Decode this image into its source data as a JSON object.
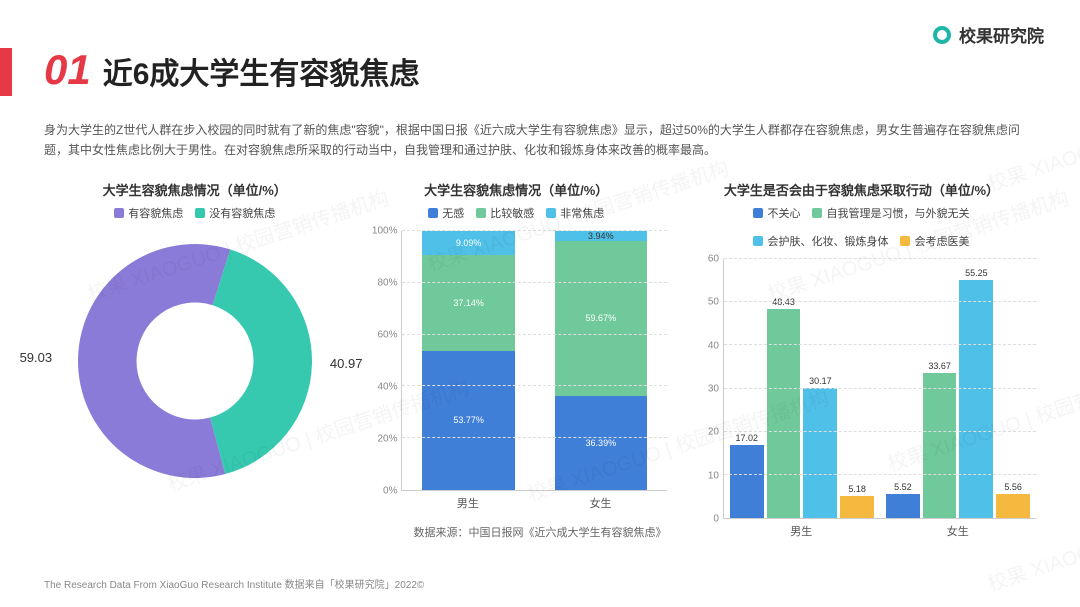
{
  "brand": {
    "name": "校果研究院"
  },
  "header": {
    "num": "01",
    "title": "近6成大学生有容貌焦虑"
  },
  "intro": "身为大学生的Z世代人群在步入校园的同时就有了新的焦虑\"容貌\"，根据中国日报《近六成大学生有容貌焦虑》显示，超过50%的大学生人群都存在容貌焦虑，男女生普遍存在容貌焦虑问题，其中女性焦虑比例大于男性。在对容貌焦虑所采取的行动当中，自我管理和通过护肤、化妆和锻炼身体来改善的概率最高。",
  "colors": {
    "purple": "#8b7bd8",
    "teal": "#36c9b0",
    "blue": "#3f7fd8",
    "green": "#6fc99a",
    "cyan": "#4fc0e8",
    "orange": "#f5b940",
    "grid": "#dddddd",
    "axis": "#cccccc"
  },
  "donut": {
    "title": "大学生容貌焦虑情况（单位/%）",
    "legend": [
      {
        "label": "有容貌焦虑",
        "color_key": "purple"
      },
      {
        "label": "没有容貌焦虑",
        "color_key": "teal"
      }
    ],
    "slices": [
      {
        "value": 59.03,
        "label": "59.03",
        "color_key": "purple"
      },
      {
        "value": 40.97,
        "label": "40.97",
        "color_key": "teal"
      }
    ],
    "inner_ratio": 0.5,
    "start_angle_deg": 75
  },
  "stacked": {
    "title": "大学生容貌焦虑情况（单位/%）",
    "legend": [
      {
        "label": "无感",
        "color_key": "blue"
      },
      {
        "label": "比较敏感",
        "color_key": "green"
      },
      {
        "label": "非常焦虑",
        "color_key": "cyan"
      }
    ],
    "ymax": 100,
    "ytick_step": 20,
    "ysuffix": "%",
    "categories": [
      "男生",
      "女生"
    ],
    "stacks": [
      [
        {
          "v": 53.77,
          "color_key": "blue"
        },
        {
          "v": 37.14,
          "color_key": "green"
        },
        {
          "v": 9.09,
          "color_key": "cyan"
        }
      ],
      [
        {
          "v": 36.39,
          "color_key": "blue"
        },
        {
          "v": 59.67,
          "color_key": "green"
        },
        {
          "v": 3.94,
          "color_key": "cyan"
        }
      ]
    ]
  },
  "grouped": {
    "title": "大学生是否会由于容貌焦虑采取行动（单位/%）",
    "legend": [
      {
        "label": "不关心",
        "color_key": "blue"
      },
      {
        "label": "自我管理是习惯，与外貌无关",
        "color_key": "green"
      },
      {
        "label": "会护肤、化妆、锻炼身体",
        "color_key": "cyan"
      },
      {
        "label": "会考虑医美",
        "color_key": "orange"
      }
    ],
    "ymax": 60,
    "ytick_step": 10,
    "ysuffix": "",
    "categories": [
      "男生",
      "女生"
    ],
    "groups": [
      [
        {
          "v": 17.02,
          "color_key": "blue"
        },
        {
          "v": 48.43,
          "color_key": "green"
        },
        {
          "v": 30.17,
          "color_key": "cyan"
        },
        {
          "v": 5.18,
          "color_key": "orange"
        }
      ],
      [
        {
          "v": 5.52,
          "color_key": "blue"
        },
        {
          "v": 33.67,
          "color_key": "green"
        },
        {
          "v": 55.25,
          "color_key": "cyan"
        },
        {
          "v": 5.56,
          "color_key": "orange"
        }
      ]
    ]
  },
  "source": "数据来源：中国日报网《近六成大学生有容貌焦虑》",
  "footer": "The Research Data From XiaoGuo Research Institute 数据来自「校果研究院」2022©",
  "watermark": "校果 XIAOGUO | 校园营销传播机构"
}
